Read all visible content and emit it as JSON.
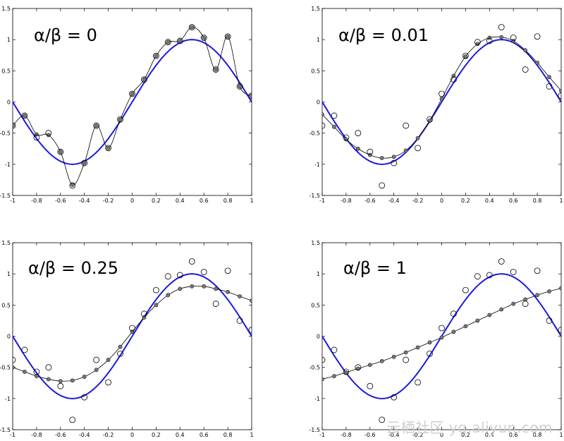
{
  "watermark": "云栖社区 yq.aliyun.com",
  "chart_data": [
    {
      "type": "line",
      "title": "α/β = 0",
      "xlim": [
        -1,
        1
      ],
      "ylim": [
        -1.5,
        1.5
      ],
      "x_ticks": [
        -1,
        -0.8,
        -0.6,
        -0.4,
        -0.2,
        0,
        0.2,
        0.4,
        0.6,
        0.8,
        1
      ],
      "y_ticks": [
        -1.5,
        -1,
        -0.5,
        0,
        0.5,
        1,
        1.5
      ],
      "x_tick_labels": [
        "-1",
        "-0.8",
        "-0.6",
        "-0.4",
        "-0.2",
        "0",
        "0.2",
        "0.4",
        "0.6",
        "0.8",
        "1"
      ],
      "y_tick_labels": [
        "-1.5",
        "-1",
        "-0.5",
        "0",
        "0.5",
        "1",
        "1.5"
      ],
      "true_function": "sin(pi*x)",
      "true_color": "#1a1adf",
      "observations": {
        "x": [
          -1,
          -0.9,
          -0.8,
          -0.7,
          -0.6,
          -0.5,
          -0.4,
          -0.3,
          -0.2,
          -0.1,
          0,
          0.1,
          0.2,
          0.3,
          0.4,
          0.5,
          0.6,
          0.7,
          0.8,
          0.9,
          1
        ],
        "y": [
          -0.38,
          -0.22,
          -0.57,
          -0.5,
          -0.8,
          -1.34,
          -0.98,
          -0.38,
          -0.74,
          -0.28,
          0.13,
          0.36,
          0.74,
          0.96,
          0.98,
          1.2,
          1.03,
          0.52,
          1.05,
          0.25,
          0.1
        ]
      },
      "fit": {
        "x": [
          -1,
          -0.9,
          -0.8,
          -0.7,
          -0.6,
          -0.5,
          -0.4,
          -0.3,
          -0.2,
          -0.1,
          0,
          0.1,
          0.2,
          0.3,
          0.4,
          0.5,
          0.6,
          0.7,
          0.8,
          0.9,
          1
        ],
        "y": [
          -0.38,
          -0.22,
          -0.52,
          -0.53,
          -0.8,
          -1.33,
          -0.98,
          -0.38,
          -0.74,
          -0.28,
          0.13,
          0.36,
          0.74,
          0.96,
          0.98,
          1.2,
          1.03,
          0.52,
          1.05,
          0.25,
          0.1
        ]
      }
    },
    {
      "type": "line",
      "title": "α/β = 0.01",
      "xlim": [
        -1,
        1
      ],
      "ylim": [
        -1.5,
        1.5
      ],
      "x_ticks": [
        -1,
        -0.8,
        -0.6,
        -0.4,
        -0.2,
        0,
        0.2,
        0.4,
        0.6,
        0.8,
        1
      ],
      "y_ticks": [
        -1.5,
        -1,
        -0.5,
        0,
        0.5,
        1,
        1.5
      ],
      "x_tick_labels": [
        "-1",
        "-0.8",
        "-0.6",
        "-0.4",
        "-0.2",
        "0",
        "0.2",
        "0.4",
        "0.6",
        "0.8",
        "1"
      ],
      "y_tick_labels": [
        "-1.5",
        "-1",
        "-0.5",
        "0",
        "0.5",
        "1",
        "1.5"
      ],
      "true_function": "sin(pi*x)",
      "true_color": "#1a1adf",
      "observations": {
        "x": [
          -1,
          -0.9,
          -0.8,
          -0.7,
          -0.6,
          -0.5,
          -0.4,
          -0.3,
          -0.2,
          -0.1,
          0,
          0.1,
          0.2,
          0.3,
          0.4,
          0.5,
          0.6,
          0.7,
          0.8,
          0.9,
          1
        ],
        "y": [
          -0.38,
          -0.22,
          -0.57,
          -0.5,
          -0.8,
          -1.34,
          -0.98,
          -0.38,
          -0.74,
          -0.28,
          0.13,
          0.36,
          0.74,
          0.96,
          0.98,
          1.2,
          1.03,
          0.52,
          1.05,
          0.25,
          0.1
        ]
      },
      "fit": {
        "x": [
          -1,
          -0.9,
          -0.8,
          -0.7,
          -0.6,
          -0.5,
          -0.4,
          -0.3,
          -0.2,
          -0.1,
          0,
          0.1,
          0.2,
          0.3,
          0.4,
          0.5,
          0.6,
          0.7,
          0.8,
          0.9,
          1
        ],
        "y": [
          -0.2,
          -0.4,
          -0.6,
          -0.75,
          -0.85,
          -0.9,
          -0.88,
          -0.78,
          -0.58,
          -0.3,
          0.05,
          0.42,
          0.73,
          0.93,
          1.03,
          1.04,
          0.98,
          0.83,
          0.63,
          0.4,
          0.18
        ]
      }
    },
    {
      "type": "line",
      "title": "α/β = 0.25",
      "xlim": [
        -1,
        1
      ],
      "ylim": [
        -1.5,
        1.5
      ],
      "x_ticks": [
        -1,
        -0.8,
        -0.6,
        -0.4,
        -0.2,
        0,
        0.2,
        0.4,
        0.6,
        0.8,
        1
      ],
      "y_ticks": [
        -1.5,
        -1,
        -0.5,
        0,
        0.5,
        1,
        1.5
      ],
      "x_tick_labels": [
        "-1",
        "-0.8",
        "-0.6",
        "-0.4",
        "-0.2",
        "0",
        "0.2",
        "0.4",
        "0.6",
        "0.8",
        "1"
      ],
      "y_tick_labels": [
        "-1.5",
        "-1",
        "-0.5",
        "0",
        "0.5",
        "1",
        "1.5"
      ],
      "true_function": "sin(pi*x)",
      "true_color": "#1a1adf",
      "observations": {
        "x": [
          -1,
          -0.9,
          -0.8,
          -0.7,
          -0.6,
          -0.5,
          -0.4,
          -0.3,
          -0.2,
          -0.1,
          0,
          0.1,
          0.2,
          0.3,
          0.4,
          0.5,
          0.6,
          0.7,
          0.8,
          0.9,
          1
        ],
        "y": [
          -0.38,
          -0.22,
          -0.57,
          -0.5,
          -0.8,
          -1.34,
          -0.98,
          -0.38,
          -0.74,
          -0.28,
          0.13,
          0.36,
          0.74,
          0.96,
          0.98,
          1.2,
          1.03,
          0.52,
          1.05,
          0.25,
          0.1
        ]
      },
      "fit": {
        "x": [
          -1,
          -0.9,
          -0.8,
          -0.7,
          -0.6,
          -0.5,
          -0.4,
          -0.3,
          -0.2,
          -0.1,
          0,
          0.1,
          0.2,
          0.3,
          0.4,
          0.5,
          0.6,
          0.7,
          0.8,
          0.9,
          1
        ],
        "y": [
          -0.5,
          -0.57,
          -0.64,
          -0.69,
          -0.72,
          -0.71,
          -0.65,
          -0.54,
          -0.38,
          -0.17,
          0.07,
          0.3,
          0.5,
          0.66,
          0.76,
          0.8,
          0.8,
          0.76,
          0.71,
          0.64,
          0.57
        ]
      }
    },
    {
      "type": "line",
      "title": "α/β = 1",
      "xlim": [
        -1,
        1
      ],
      "ylim": [
        -1.5,
        1.5
      ],
      "x_ticks": [
        -1,
        -0.8,
        -0.6,
        -0.4,
        -0.2,
        0,
        0.2,
        0.4,
        0.6,
        0.8,
        1
      ],
      "y_ticks": [
        -1.5,
        -1,
        -0.5,
        0,
        0.5,
        1,
        1.5
      ],
      "x_tick_labels": [
        "-1",
        "-0.8",
        "-0.6",
        "-0.4",
        "-0.2",
        "0",
        "0.2",
        "0.4",
        "0.6",
        "0.8",
        "1"
      ],
      "y_tick_labels": [
        "-1.5",
        "-1",
        "-0.5",
        "0",
        "0.5",
        "1",
        "1.5"
      ],
      "true_function": "sin(pi*x)",
      "true_color": "#1a1adf",
      "observations": {
        "x": [
          -1,
          -0.9,
          -0.8,
          -0.7,
          -0.6,
          -0.5,
          -0.4,
          -0.3,
          -0.2,
          -0.1,
          0,
          0.1,
          0.2,
          0.3,
          0.4,
          0.5,
          0.6,
          0.7,
          0.8,
          0.9,
          1
        ],
        "y": [
          -0.38,
          -0.22,
          -0.57,
          -0.5,
          -0.8,
          -1.34,
          -0.98,
          -0.38,
          -0.74,
          -0.28,
          0.13,
          0.36,
          0.74,
          0.96,
          0.98,
          1.2,
          1.03,
          0.52,
          1.05,
          0.25,
          0.1
        ]
      },
      "fit": {
        "x": [
          -1,
          -0.9,
          -0.8,
          -0.7,
          -0.6,
          -0.5,
          -0.4,
          -0.3,
          -0.2,
          -0.1,
          0,
          0.1,
          0.2,
          0.3,
          0.4,
          0.5,
          0.6,
          0.7,
          0.8,
          0.9,
          1
        ],
        "y": [
          -0.69,
          -0.64,
          -0.58,
          -0.52,
          -0.46,
          -0.4,
          -0.33,
          -0.26,
          -0.18,
          -0.1,
          -0.02,
          0.07,
          0.16,
          0.25,
          0.34,
          0.43,
          0.52,
          0.59,
          0.66,
          0.72,
          0.77
        ]
      }
    }
  ]
}
